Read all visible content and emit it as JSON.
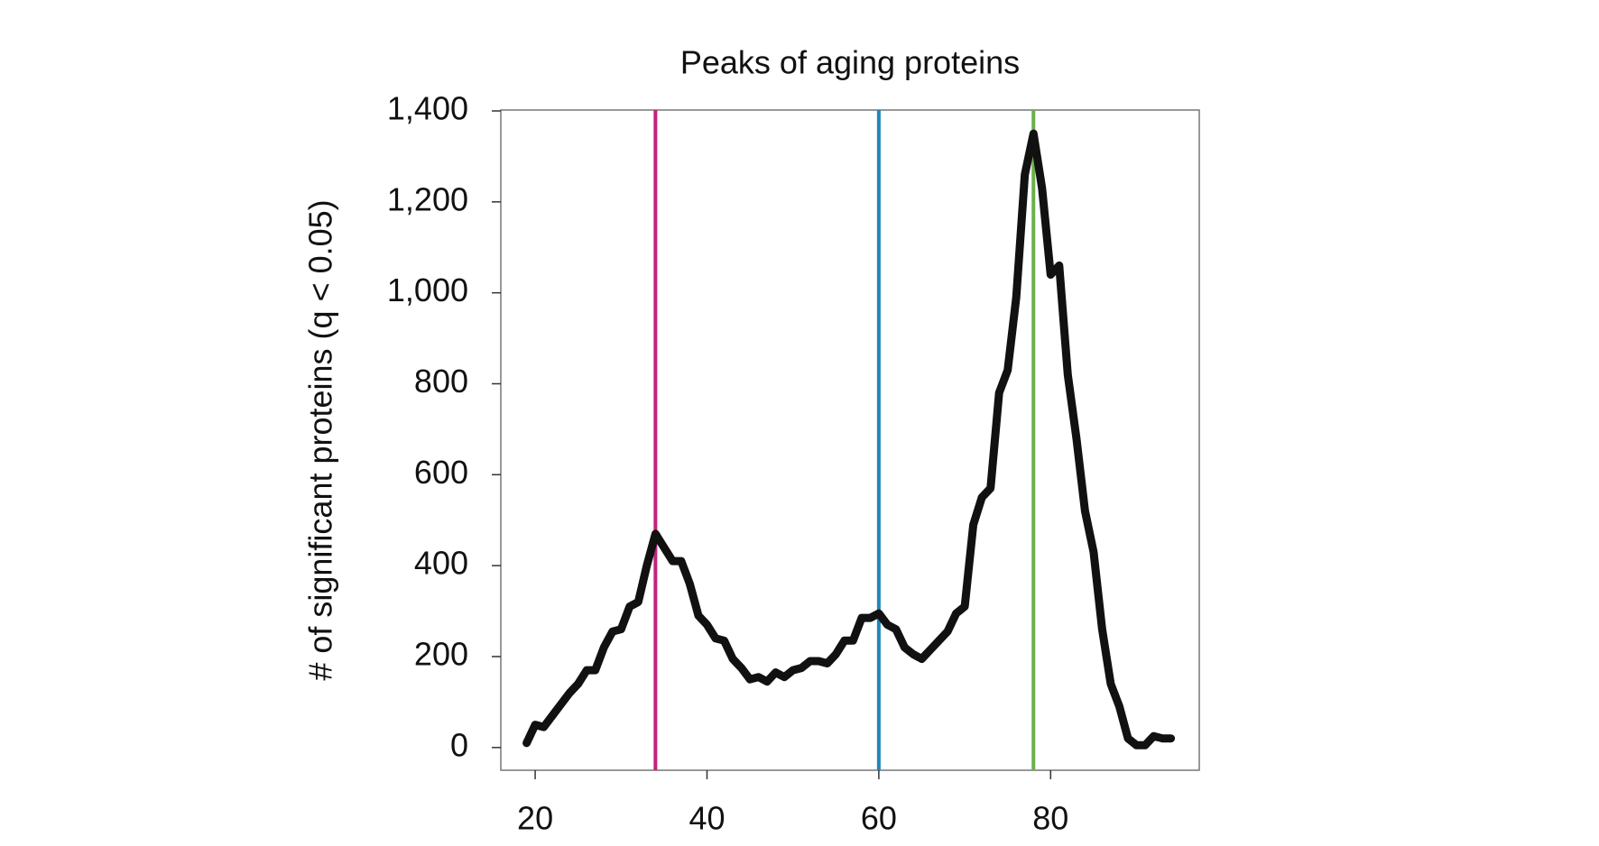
{
  "chart_data": {
    "type": "line",
    "title": "Peaks of aging proteins",
    "y_label": "# of significant proteins (q < 0.05)",
    "x": [
      19,
      20,
      21,
      22,
      23,
      24,
      25,
      26,
      27,
      28,
      29,
      30,
      31,
      32,
      33,
      34,
      35,
      36,
      37,
      38,
      39,
      40,
      41,
      42,
      43,
      44,
      45,
      46,
      47,
      48,
      49,
      50,
      51,
      52,
      53,
      54,
      55,
      56,
      57,
      58,
      59,
      60,
      61,
      62,
      63,
      64,
      65,
      66,
      67,
      68,
      69,
      70,
      71,
      72,
      73,
      74,
      75,
      76,
      77,
      78,
      79,
      80,
      81,
      82,
      83,
      84,
      85,
      86,
      87,
      88,
      89,
      90,
      91,
      92,
      93,
      94
    ],
    "series": [
      {
        "color": "#111111",
        "values": [
          10,
          50,
          45,
          70,
          95,
          120,
          140,
          170,
          170,
          220,
          255,
          260,
          310,
          320,
          400,
          470,
          440,
          410,
          410,
          360,
          290,
          270,
          240,
          235,
          195,
          175,
          150,
          155,
          145,
          165,
          155,
          170,
          175,
          190,
          190,
          185,
          205,
          235,
          235,
          285,
          285,
          295,
          270,
          260,
          220,
          205,
          195,
          215,
          235,
          255,
          295,
          310,
          490,
          550,
          570,
          780,
          830,
          990,
          1260,
          1350,
          1230,
          1040,
          1060,
          820,
          680,
          520,
          430,
          260,
          140,
          90,
          20,
          5,
          5,
          25,
          20,
          20
        ]
      }
    ],
    "vlines": [
      {
        "x": 34,
        "color": "#c2237f"
      },
      {
        "x": 60,
        "color": "#1f86b8"
      },
      {
        "x": 78,
        "color": "#6ab04c"
      }
    ],
    "xlim": [
      16,
      97.3
    ],
    "ylim": [
      -50,
      1402
    ],
    "xticks": [
      20,
      40,
      60,
      80
    ],
    "yticks": [
      0,
      200,
      400,
      600,
      800,
      {
        "value": 1000,
        "label": "1,000"
      },
      {
        "value": 1200,
        "label": "1,200"
      },
      {
        "value": 1400,
        "label": "1,400"
      }
    ]
  }
}
